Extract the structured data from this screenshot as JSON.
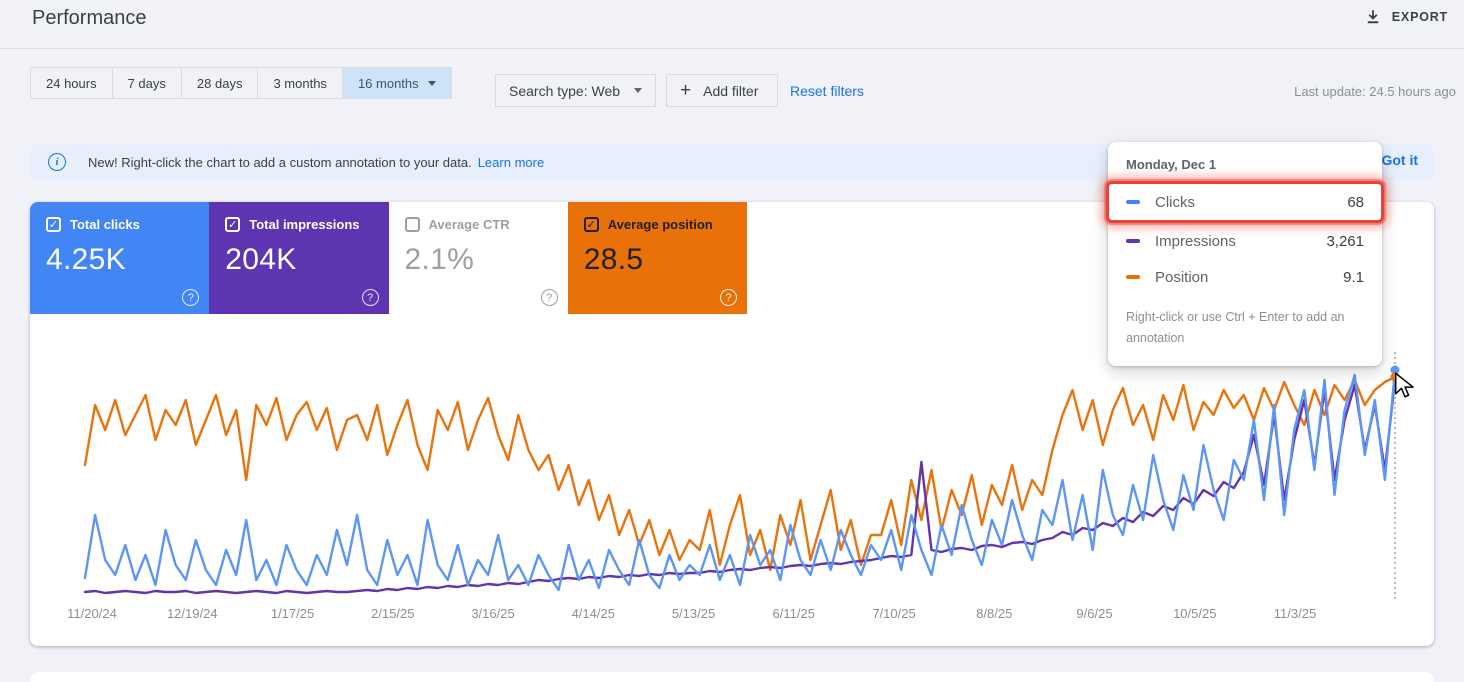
{
  "header": {
    "title": "Performance",
    "export_label": "EXPORT"
  },
  "filters": {
    "date_tabs": [
      {
        "label": "24 hours",
        "selected": false
      },
      {
        "label": "7 days",
        "selected": false
      },
      {
        "label": "28 days",
        "selected": false
      },
      {
        "label": "3 months",
        "selected": false
      },
      {
        "label": "16 months",
        "selected": true
      }
    ],
    "search_type": "Search type: Web",
    "add_filter_label": "Add filter",
    "reset_filters_label": "Reset filters",
    "last_update": "Last update: 24.5 hours ago"
  },
  "banner": {
    "message": "New! Right-click the chart to add a custom annotation to your data.",
    "learn_more_label": "Learn more",
    "got_it_label": "Got it"
  },
  "metric_cards": [
    {
      "label": "Total clicks",
      "value": "4.25K",
      "checked": true,
      "bg": "#4285f4",
      "fg": "#ffffff",
      "cb": "#ffffff",
      "help": "rgba(255,255,255,0.85)"
    },
    {
      "label": "Total impressions",
      "value": "204K",
      "checked": true,
      "bg": "#5e35b1",
      "fg": "#ffffff",
      "cb": "#ffffff",
      "help": "rgba(255,255,255,0.85)"
    },
    {
      "label": "Average CTR",
      "value": "2.1%",
      "checked": false,
      "bg": "#ffffff",
      "fg": "#9aa0a6",
      "cb": "#9aa0a6",
      "help": "#9aa0a6"
    },
    {
      "label": "Average position",
      "value": "28.5",
      "checked": true,
      "bg": "#e8710a",
      "fg": "#202124",
      "cb": "#202124",
      "help": "rgba(255,255,255,0.9)"
    }
  ],
  "tooltip": {
    "date": "Monday, Dec 1",
    "rows": [
      {
        "label": "Clicks",
        "value": "68",
        "color": "#4285f4",
        "highlighted": true
      },
      {
        "label": "Impressions",
        "value": "3,261",
        "color": "#5e35b1",
        "highlighted": false
      },
      {
        "label": "Position",
        "value": "9.1",
        "color": "#e8710a",
        "highlighted": false
      }
    ],
    "footnote": "Right-click or use Ctrl + Enter to add an annotation",
    "highlight_color": "#ea4335"
  },
  "chart": {
    "type": "line",
    "x_labels": [
      "11/20/24",
      "12/19/24",
      "1/17/25",
      "2/15/25",
      "3/16/25",
      "4/14/25",
      "5/13/25",
      "6/11/25",
      "7/10/25",
      "8/8/25",
      "9/6/25",
      "10/5/25",
      "11/3/25"
    ],
    "series": [
      {
        "name": "Position",
        "color": "#e8740e",
        "points": [
          105,
          45,
          70,
          40,
          75,
          55,
          35,
          80,
          50,
          65,
          40,
          85,
          60,
          35,
          75,
          50,
          120,
          45,
          65,
          38,
          80,
          55,
          42,
          70,
          48,
          90,
          60,
          55,
          80,
          45,
          95,
          65,
          40,
          85,
          110,
          50,
          70,
          42,
          90,
          60,
          38,
          75,
          100,
          55,
          90,
          110,
          95,
          130,
          105,
          145,
          120,
          160,
          135,
          175,
          150,
          185,
          160,
          195,
          170,
          200,
          180,
          190,
          150,
          205,
          165,
          135,
          195,
          170,
          210,
          155,
          185,
          140,
          200,
          165,
          130,
          190,
          160,
          205,
          175,
          175,
          140,
          185,
          120,
          160,
          110,
          170,
          130,
          155,
          115,
          165,
          125,
          145,
          105,
          150,
          120,
          135,
          90,
          55,
          30,
          70,
          40,
          85,
          50,
          28,
          65,
          45,
          80,
          35,
          60,
          25,
          70,
          42,
          55,
          30,
          48,
          35,
          60,
          28,
          50,
          22,
          45,
          65,
          30,
          55,
          25,
          40,
          20,
          45,
          30,
          22,
          17
        ]
      },
      {
        "name": "Impressions",
        "color": "#6234ae",
        "points": [
          232,
          231,
          233,
          232,
          231,
          232,
          233,
          231,
          232,
          232,
          231,
          233,
          232,
          231,
          232,
          233,
          232,
          231,
          232,
          233,
          231,
          232,
          233,
          232,
          231,
          232,
          232,
          231,
          230,
          231,
          229,
          230,
          228,
          229,
          227,
          228,
          226,
          227,
          225,
          226,
          224,
          225,
          223,
          224,
          222,
          220,
          221,
          219,
          218,
          219,
          217,
          218,
          216,
          217,
          215,
          216,
          214,
          215,
          213,
          214,
          213,
          213,
          211,
          212,
          210,
          209,
          210,
          208,
          207,
          208,
          206,
          205,
          206,
          204,
          203,
          204,
          202,
          201,
          200,
          198,
          196,
          197,
          195,
          102,
          190,
          192,
          189,
          188,
          190,
          186,
          185,
          187,
          183,
          182,
          184,
          180,
          178,
          172,
          175,
          168,
          170,
          163,
          166,
          158,
          162,
          152,
          156,
          146,
          150,
          138,
          144,
          130,
          136,
          122,
          128,
          112,
          75,
          125,
          55,
          140,
          80,
          40,
          105,
          30,
          120,
          60,
          25,
          90,
          45,
          110,
          20
        ]
      },
      {
        "name": "Clicks",
        "color": "#5d96f3",
        "points": [
          218,
          155,
          200,
          215,
          185,
          220,
          195,
          225,
          170,
          205,
          220,
          180,
          210,
          225,
          190,
          215,
          160,
          220,
          200,
          225,
          185,
          210,
          225,
          195,
          215,
          170,
          205,
          155,
          210,
          225,
          180,
          215,
          195,
          225,
          160,
          205,
          220,
          185,
          225,
          200,
          215,
          175,
          220,
          205,
          225,
          195,
          215,
          230,
          185,
          220,
          200,
          228,
          190,
          210,
          225,
          180,
          215,
          228,
          195,
          220,
          205,
          215,
          185,
          220,
          195,
          225,
          175,
          205,
          190,
          220,
          165,
          200,
          215,
          180,
          210,
          170,
          195,
          215,
          185,
          200,
          170,
          210,
          155,
          190,
          215,
          165,
          195,
          145,
          180,
          205,
          160,
          185,
          140,
          175,
          200,
          150,
          165,
          120,
          180,
          135,
          190,
          110,
          155,
          175,
          125,
          160,
          95,
          140,
          170,
          115,
          150,
          85,
          130,
          160,
          100,
          120,
          60,
          140,
          45,
          155,
          70,
          30,
          110,
          20,
          135,
          50,
          15,
          95,
          40,
          120,
          10
        ]
      }
    ],
    "hover": {
      "line_color": "#9aa0a6",
      "markers": [
        {
          "series": "Clicks",
          "color": "#5d96f3",
          "y": 10
        },
        {
          "series": "Position",
          "color": "#e8740e",
          "y": 17
        }
      ]
    }
  }
}
